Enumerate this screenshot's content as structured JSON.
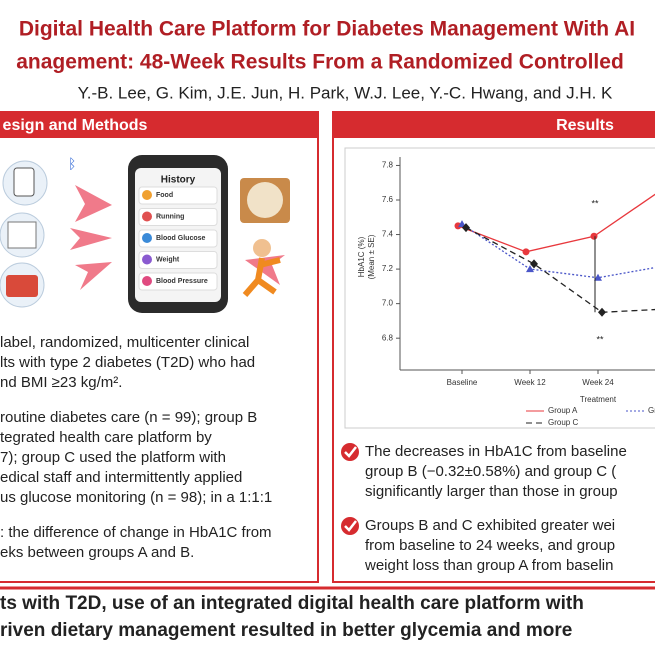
{
  "header": {
    "title_lines": [
      "Digital Health Care Platform for Diabetes Management With AI",
      "anagement: 48-Week Results From a Randomized Controlled"
    ],
    "authors": "Y.-B. Lee, G. Kim, J.E. Jun, H. Park, W.J. Lee, Y.-C. Hwang, and J.H. K"
  },
  "methods": {
    "heading": "esign and Methods",
    "phone_title": "History",
    "phone_items": [
      "Food",
      "Running",
      "Blood Glucose",
      "Weight",
      "Blood Pressure"
    ],
    "lines": [
      "label, randomized, multicenter clinical",
      "lts with type 2 diabetes (T2D) who had",
      "nd BMI ≥23 kg/m².",
      "routine diabetes care (n = 99); group B",
      "tegrated health care platform by",
      "7); group C used the platform with",
      "edical staff and intermittently applied",
      "us glucose monitoring (n = 98); in a 1:1:1",
      ": the difference of change in HbA1C from",
      "eks between groups A and B."
    ]
  },
  "results": {
    "heading": "Results",
    "bullets": [
      [
        "The decreases in HbA1C from baseline",
        "group B (−0.32±0.58%) and group C (",
        "significantly larger than those in group"
      ],
      [
        "Groups B and C exhibited greater wei",
        "from baseline to 24 weeks, and group",
        "weight loss than group A from baselin"
      ]
    ]
  },
  "chart_data": {
    "type": "line",
    "categories": [
      "Baseline",
      "Week 12",
      "Week 24",
      "W"
    ],
    "y_label": [
      "HbA1C (%)",
      "(Mean ± SE)"
    ],
    "x_label": "Treatment",
    "ylim": [
      6.72,
      7.82
    ],
    "yticks": [
      6.8,
      {
        "value": 7,
        "label": "7.0"
      },
      7.2,
      7.4,
      7.6,
      7.8
    ],
    "series": [
      {
        "name": "Group A",
        "color": "#e8383d",
        "values": [
          7.45,
          7.3,
          7.39,
          7.66
        ]
      },
      {
        "name": "Group B",
        "color": "#4a56c8",
        "values": [
          7.46,
          7.2,
          7.15,
          7.22
        ]
      },
      {
        "name": "Group C",
        "color": "#222222",
        "values": [
          7.44,
          7.23,
          6.95,
          6.97
        ]
      }
    ],
    "annotations": [
      "**",
      "**"
    ]
  },
  "conclusion": {
    "lines": [
      "ts with T2D, use of an integrated digital health care platform with",
      "riven dietary management resulted in better glycemia and more"
    ]
  }
}
